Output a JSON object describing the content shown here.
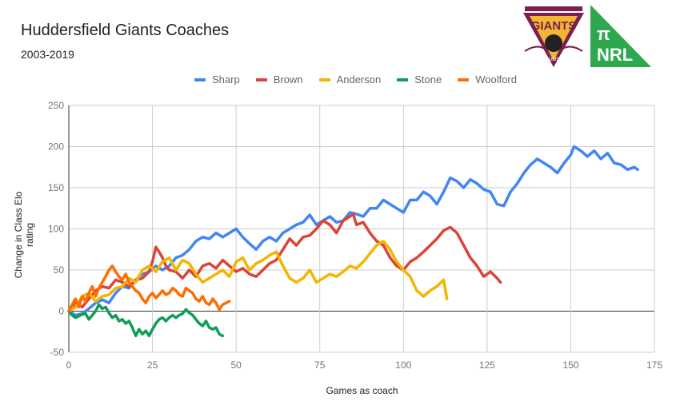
{
  "header": {
    "title": "Huddersfield Giants Coaches",
    "subtitle": "2003-2019"
  },
  "logos": {
    "giants": {
      "top_text": "THE BIRTHPLACE OF RUGBY LEAGUE",
      "name": "GIANTS",
      "year": "1895"
    },
    "nrl": {
      "symbol": "π",
      "text": "NRL",
      "color": "#2ea84f"
    }
  },
  "chart_data": {
    "type": "line",
    "title": "Huddersfield Giants Coaches",
    "subtitle": "2003-2019",
    "xlabel": "Games as coach",
    "ylabel": "Change in Class Elo rating",
    "xlim": [
      0,
      175
    ],
    "ylim": [
      -50,
      250
    ],
    "xticks": [
      0,
      25,
      50,
      75,
      100,
      125,
      150,
      175
    ],
    "yticks": [
      -50,
      0,
      50,
      100,
      150,
      200,
      250
    ],
    "grid": true,
    "legend_position": "top",
    "series": [
      {
        "name": "Sharp",
        "color": "#4285f4",
        "x": [
          0,
          2,
          4,
          6,
          8,
          10,
          12,
          14,
          16,
          18,
          20,
          22,
          24,
          26,
          28,
          30,
          32,
          34,
          36,
          38,
          40,
          42,
          44,
          46,
          48,
          50,
          52,
          54,
          56,
          58,
          60,
          62,
          64,
          66,
          68,
          70,
          72,
          74,
          76,
          78,
          80,
          82,
          84,
          86,
          88,
          90,
          92,
          94,
          96,
          98,
          100,
          102,
          104,
          106,
          108,
          110,
          112,
          114,
          116,
          118,
          120,
          122,
          124,
          126,
          128,
          130,
          132,
          134,
          136,
          138,
          140,
          142,
          144,
          146,
          148,
          150,
          151,
          153,
          155,
          157,
          159,
          161,
          163,
          165,
          167,
          169,
          170
        ],
        "y": [
          0,
          -5,
          -3,
          3,
          10,
          14,
          10,
          22,
          30,
          28,
          38,
          45,
          48,
          55,
          50,
          55,
          65,
          68,
          75,
          85,
          90,
          88,
          95,
          90,
          95,
          100,
          90,
          82,
          75,
          85,
          90,
          85,
          95,
          100,
          105,
          108,
          117,
          105,
          110,
          115,
          108,
          110,
          120,
          118,
          115,
          125,
          125,
          135,
          130,
          125,
          120,
          135,
          135,
          145,
          140,
          130,
          145,
          162,
          158,
          150,
          160,
          155,
          148,
          145,
          130,
          128,
          145,
          155,
          168,
          178,
          185,
          180,
          175,
          168,
          180,
          190,
          200,
          195,
          188,
          195,
          185,
          192,
          180,
          178,
          172,
          175,
          172
        ]
      },
      {
        "name": "Brown",
        "color": "#db4437",
        "x": [
          0,
          2,
          4,
          6,
          8,
          10,
          12,
          14,
          16,
          18,
          20,
          22,
          24,
          25,
          26,
          27,
          28,
          29,
          30,
          32,
          34,
          36,
          38,
          40,
          42,
          44,
          46,
          48,
          50,
          52,
          54,
          56,
          58,
          60,
          62,
          64,
          66,
          68,
          70,
          72,
          74,
          76,
          78,
          80,
          82,
          84,
          85,
          86,
          88,
          90,
          92,
          94,
          96,
          98,
          100,
          102,
          104,
          106,
          108,
          110,
          112,
          114,
          116,
          118,
          120,
          122,
          124,
          126,
          128,
          129
        ],
        "y": [
          0,
          10,
          5,
          15,
          25,
          30,
          28,
          38,
          35,
          30,
          38,
          40,
          48,
          60,
          78,
          72,
          65,
          55,
          50,
          48,
          40,
          50,
          42,
          55,
          58,
          52,
          62,
          55,
          48,
          52,
          45,
          42,
          50,
          58,
          62,
          75,
          88,
          80,
          90,
          92,
          100,
          110,
          105,
          95,
          110,
          115,
          118,
          105,
          108,
          95,
          85,
          80,
          65,
          55,
          50,
          60,
          65,
          72,
          80,
          88,
          98,
          102,
          95,
          80,
          65,
          55,
          42,
          48,
          40,
          35
        ]
      },
      {
        "name": "Anderson",
        "color": "#f4b400",
        "x": [
          0,
          2,
          4,
          6,
          8,
          10,
          12,
          14,
          16,
          18,
          20,
          22,
          24,
          26,
          28,
          30,
          32,
          34,
          36,
          38,
          40,
          42,
          44,
          46,
          48,
          50,
          52,
          54,
          56,
          58,
          60,
          62,
          64,
          66,
          68,
          70,
          72,
          74,
          76,
          78,
          80,
          82,
          84,
          86,
          88,
          90,
          92,
          94,
          96,
          98,
          100,
          102,
          104,
          106,
          108,
          110,
          112,
          113
        ],
        "y": [
          0,
          5,
          18,
          22,
          12,
          18,
          20,
          28,
          30,
          40,
          35,
          50,
          55,
          48,
          60,
          65,
          50,
          62,
          58,
          45,
          35,
          40,
          45,
          50,
          42,
          60,
          65,
          50,
          58,
          62,
          68,
          72,
          55,
          40,
          35,
          40,
          50,
          35,
          40,
          45,
          42,
          48,
          55,
          52,
          60,
          70,
          80,
          85,
          75,
          60,
          50,
          42,
          25,
          18,
          25,
          30,
          38,
          15
        ]
      },
      {
        "name": "Stone",
        "color": "#0f9d58",
        "x": [
          0,
          1,
          2,
          3,
          4,
          5,
          6,
          7,
          8,
          9,
          10,
          11,
          12,
          13,
          14,
          15,
          16,
          17,
          18,
          19,
          20,
          21,
          22,
          23,
          24,
          25,
          26,
          27,
          28,
          29,
          30,
          31,
          32,
          33,
          34,
          35,
          36,
          37,
          38,
          39,
          40,
          41,
          42,
          43,
          44,
          45,
          46
        ],
        "y": [
          0,
          -5,
          -8,
          -6,
          -4,
          -3,
          -10,
          -5,
          0,
          8,
          3,
          5,
          -2,
          -8,
          -5,
          -12,
          -10,
          -15,
          -12,
          -20,
          -30,
          -22,
          -28,
          -24,
          -30,
          -22,
          -15,
          -10,
          -8,
          -12,
          -8,
          -5,
          -8,
          -5,
          -3,
          2,
          -2,
          -5,
          -10,
          -15,
          -18,
          -12,
          -20,
          -22,
          -20,
          -28,
          -30
        ]
      },
      {
        "name": "Woolford",
        "color": "#ff6d00",
        "x": [
          0,
          1,
          2,
          3,
          4,
          5,
          6,
          7,
          8,
          9,
          10,
          11,
          12,
          13,
          14,
          15,
          16,
          17,
          18,
          19,
          20,
          21,
          22,
          23,
          24,
          25,
          26,
          27,
          28,
          29,
          30,
          31,
          32,
          33,
          34,
          35,
          36,
          37,
          38,
          39,
          40,
          41,
          42,
          43,
          44,
          45,
          46,
          47,
          48
        ],
        "y": [
          0,
          8,
          15,
          5,
          18,
          12,
          22,
          30,
          18,
          28,
          35,
          42,
          50,
          55,
          48,
          42,
          38,
          45,
          35,
          30,
          25,
          22,
          15,
          10,
          18,
          22,
          16,
          20,
          25,
          20,
          22,
          28,
          25,
          20,
          18,
          28,
          25,
          22,
          15,
          12,
          18,
          10,
          8,
          15,
          10,
          2,
          8,
          10,
          12
        ]
      }
    ]
  },
  "legend": {
    "items": [
      {
        "label": "Sharp",
        "color": "#4285f4"
      },
      {
        "label": "Brown",
        "color": "#db4437"
      },
      {
        "label": "Anderson",
        "color": "#f4b400"
      },
      {
        "label": "Stone",
        "color": "#0f9d58"
      },
      {
        "label": "Woolford",
        "color": "#ff6d00"
      }
    ]
  },
  "axes": {
    "x_title": "Games as coach",
    "y_title": "Change in Class Elo rating"
  }
}
